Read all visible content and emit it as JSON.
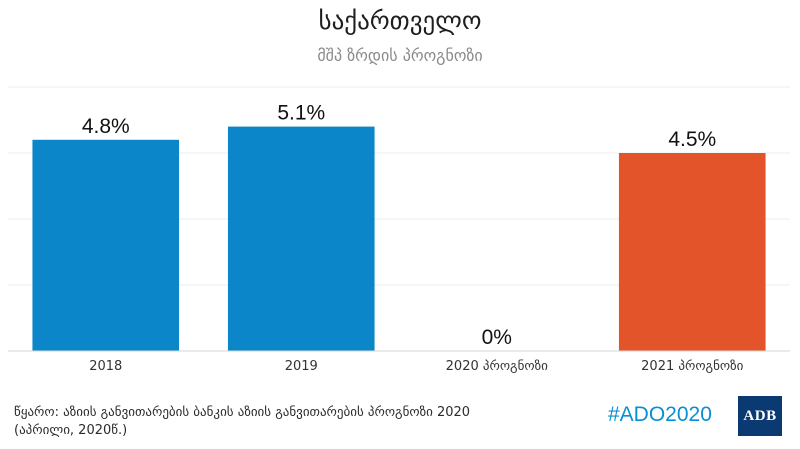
{
  "header": {
    "title": "საქართველო",
    "subtitle": "მშპ ზრდის პროგნოზი"
  },
  "chart_data": {
    "type": "bar",
    "title": "საქართველო",
    "subtitle": "მშპ ზრდის პროგნოზი",
    "categories": [
      "2018",
      "2019",
      "2020 პროგნოზი",
      "2021 პროგნოზი"
    ],
    "values": [
      4.8,
      5.1,
      0,
      4.5
    ],
    "value_labels": [
      "4.8%",
      "5.1%",
      "0%",
      "4.5%"
    ],
    "bar_colors": [
      "#0b86c8",
      "#0b86c8",
      "#0b86c8",
      "#e3542b"
    ],
    "ylim": [
      0,
      6
    ],
    "xlabel": "",
    "ylabel": "",
    "grid": true,
    "legend": "none"
  },
  "footer": {
    "source": "წყარო: აზიის განვითარების ბანკის აზიის განვითარების პროგნოზი 2020 (აპრილი, 2020წ.)",
    "hashtag": "#ADO2020",
    "logo_text": "ADB"
  },
  "colors": {
    "bar_primary": "#0b86c8",
    "bar_forecast": "#e3542b",
    "hashtag": "#0a8fd0",
    "logo_bg": "#0b3a73"
  }
}
